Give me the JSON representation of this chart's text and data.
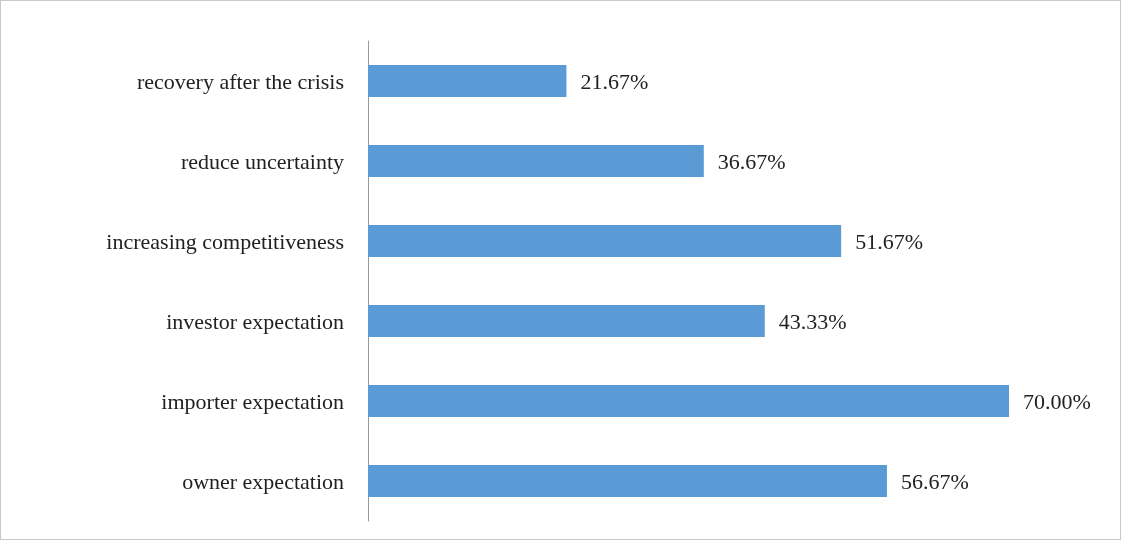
{
  "chart_data": {
    "type": "bar",
    "orientation": "horizontal",
    "categories": [
      "recovery after the crisis",
      "reduce uncertainty",
      "increasing competitiveness",
      "investor expectation",
      "importer expectation",
      "owner expectation"
    ],
    "values": [
      21.67,
      36.67,
      51.67,
      43.33,
      70.0,
      56.67
    ],
    "value_labels": [
      "21.67%",
      "36.67%",
      "51.67%",
      "43.33%",
      "70.00%",
      "56.67%"
    ],
    "color": "#5b9bd5"
  }
}
